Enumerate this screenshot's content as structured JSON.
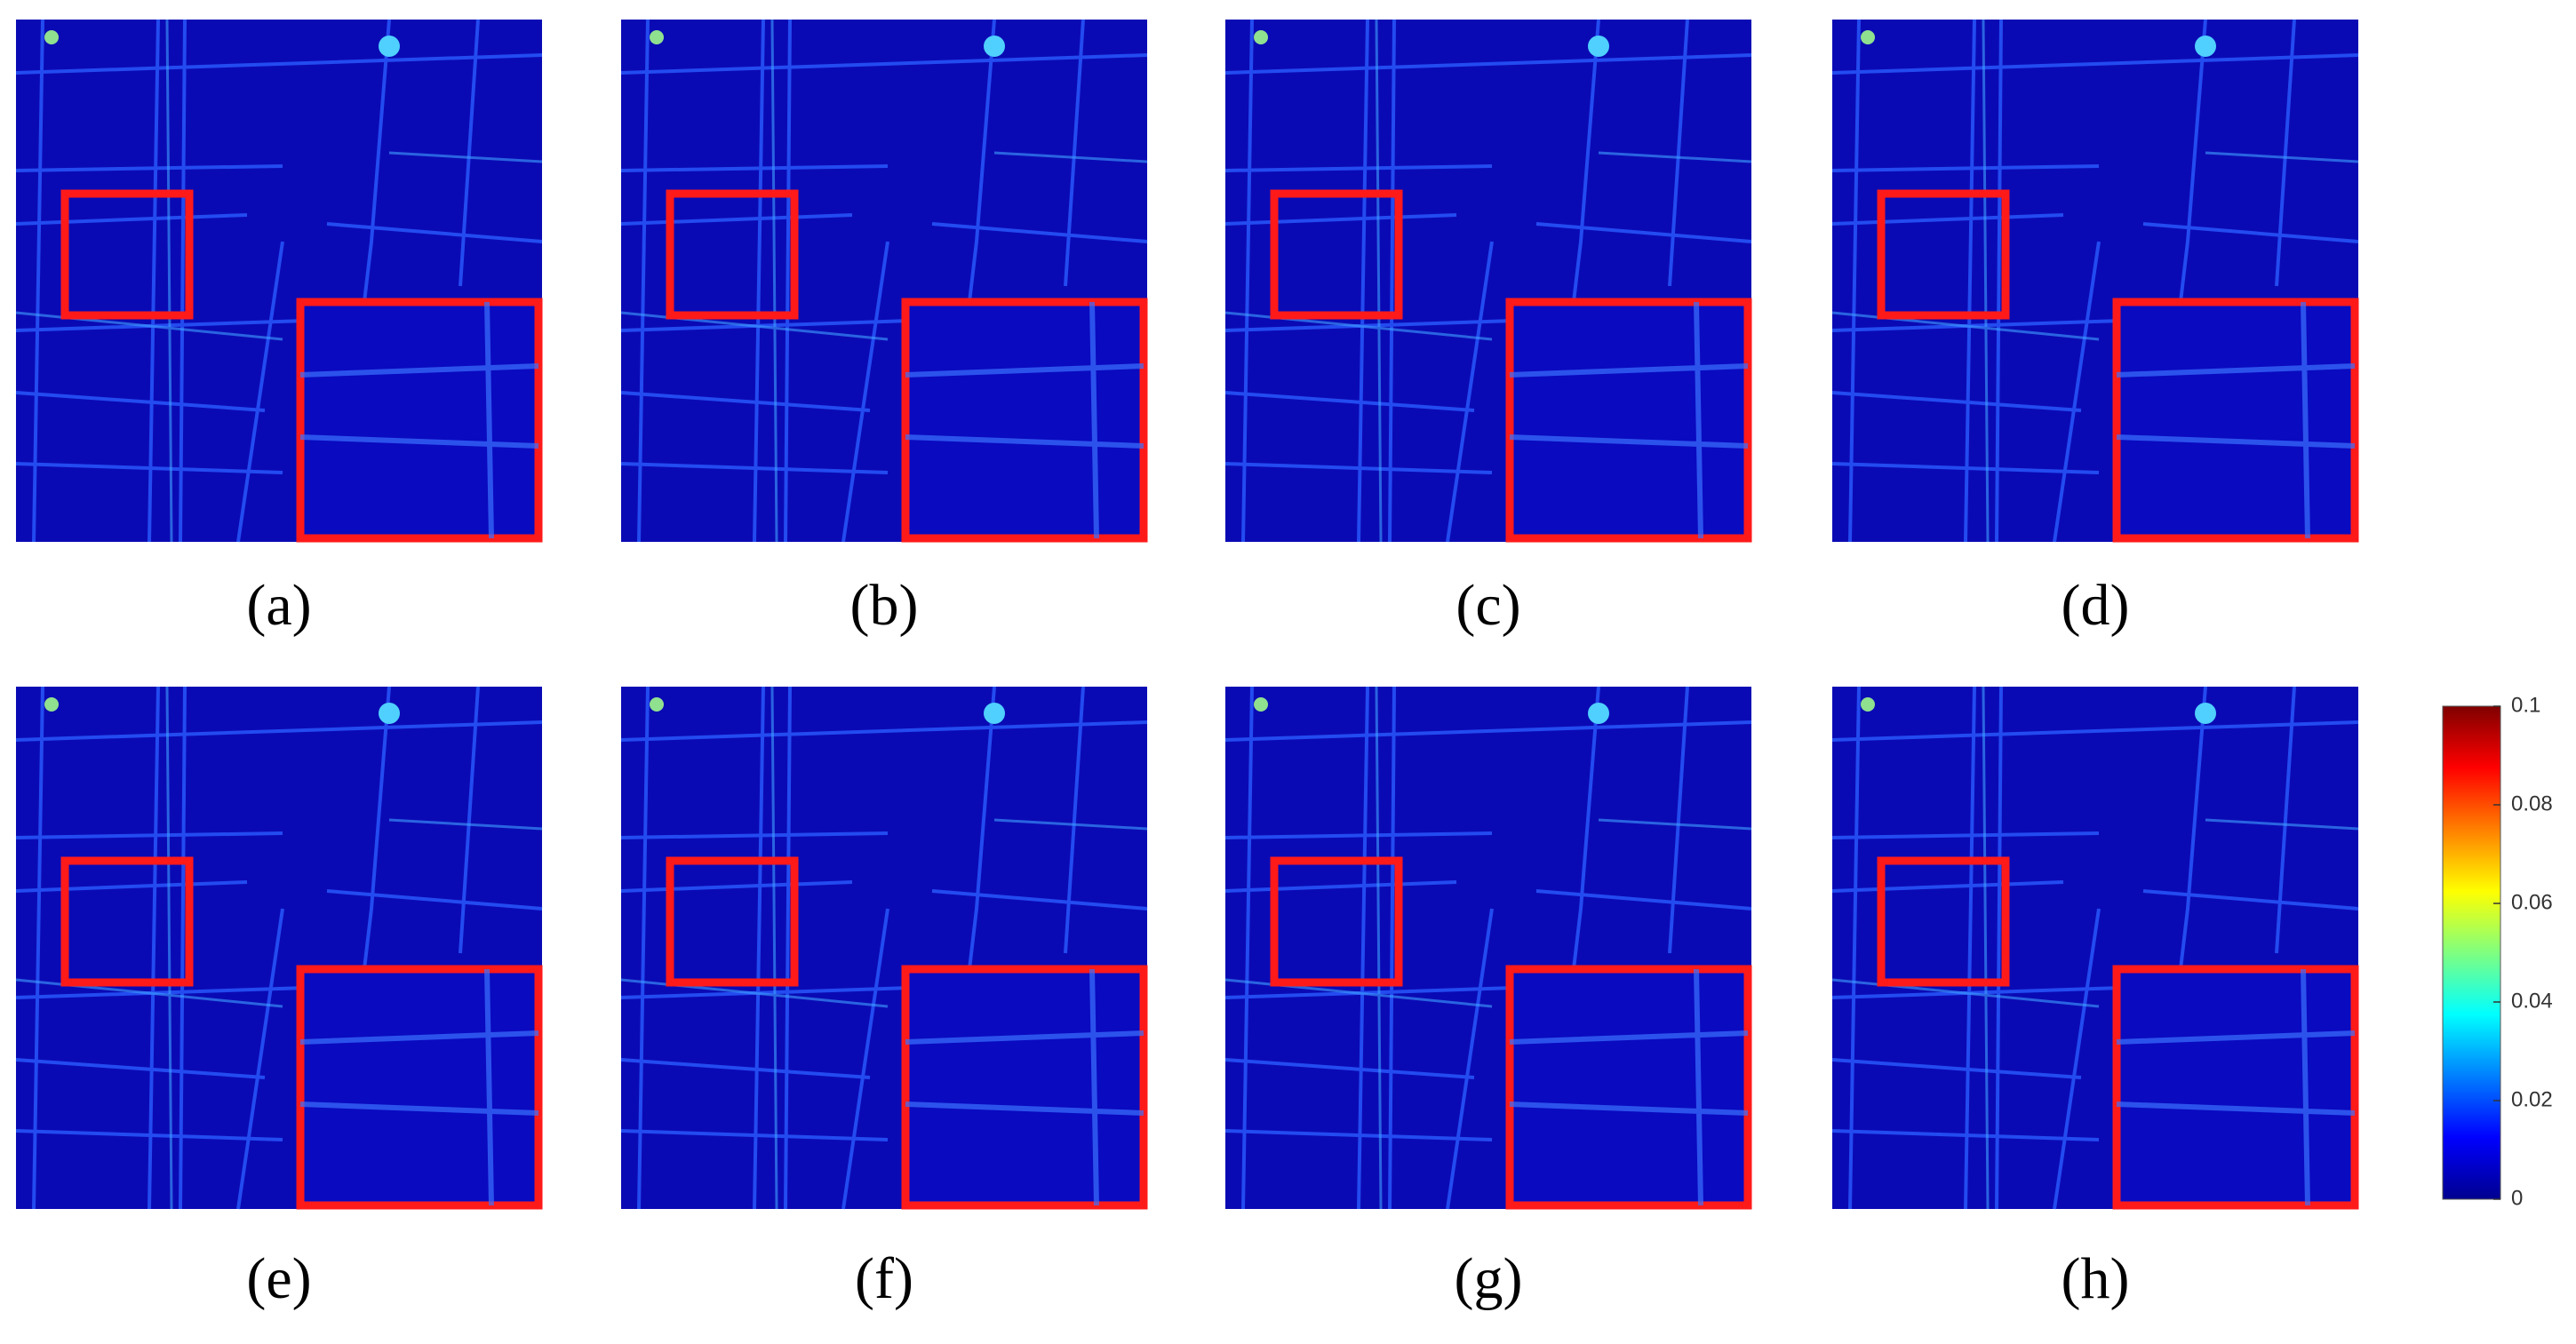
{
  "panels": [
    {
      "label": "(a)"
    },
    {
      "label": "(b)"
    },
    {
      "label": "(c)"
    },
    {
      "label": "(d)"
    },
    {
      "label": "(e)"
    },
    {
      "label": "(f)"
    },
    {
      "label": "(g)"
    },
    {
      "label": "(h)"
    }
  ],
  "colorbar": {
    "lim": [
      0,
      0.1
    ],
    "ticks": [
      0,
      0.02,
      0.04,
      0.06,
      0.08,
      0.1
    ]
  }
}
